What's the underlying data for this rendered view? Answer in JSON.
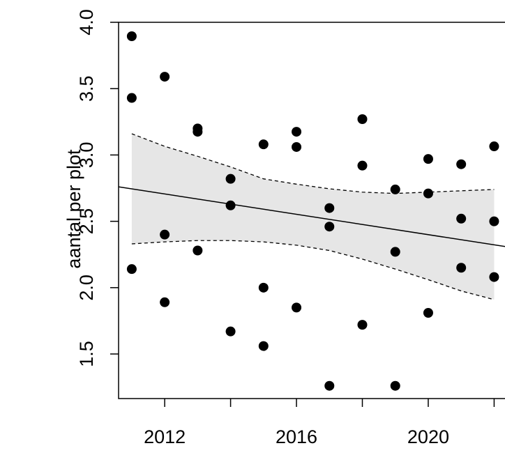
{
  "chart_data": {
    "type": "scatter",
    "y_label": "aantal per plot",
    "xlim": [
      2010.6,
      2022.33
    ],
    "ylim": [
      1.164,
      4.0
    ],
    "xticks": [
      2012,
      {
        "value": 2014,
        "label": null
      },
      2016,
      {
        "value": 2018,
        "label": null
      },
      2020,
      {
        "value": 2022,
        "label": null
      }
    ],
    "yticks": [
      {
        "value": 1.5,
        "label": "1.5"
      },
      {
        "value": 2.0,
        "label": "2.0"
      },
      {
        "value": 2.5,
        "label": "2.5"
      },
      {
        "value": 3.0,
        "label": "3.0"
      },
      {
        "value": 3.5,
        "label": "3.5"
      },
      {
        "value": 4.0,
        "label": "4.0"
      }
    ],
    "color": "#000000",
    "x": [
      2011,
      2011,
      2011,
      2012,
      2012,
      2012,
      2013,
      2013,
      2013,
      2014,
      2014,
      2014,
      2015,
      2015,
      2015,
      2016,
      2016,
      2016,
      2017,
      2017,
      2017,
      2018,
      2018,
      2018,
      2019,
      2019,
      2019,
      2020,
      2020,
      2020,
      2021,
      2021,
      2021,
      2022,
      2022,
      2022
    ],
    "y": [
      3.895,
      3.43,
      2.14,
      3.59,
      2.4,
      1.89,
      3.2,
      3.175,
      2.28,
      2.82,
      2.62,
      1.67,
      3.08,
      2.0,
      1.56,
      3.175,
      3.06,
      1.85,
      2.6,
      2.46,
      1.26,
      3.27,
      2.92,
      1.72,
      2.74,
      2.27,
      1.26,
      2.97,
      2.71,
      1.81,
      2.93,
      2.52,
      2.15,
      3.065,
      2.5,
      2.08
    ],
    "trend": {
      "x": [
        2010.6,
        2022.33
      ],
      "y": [
        2.76,
        2.31
      ]
    },
    "band": {
      "x": [
        2011,
        2012,
        2013,
        2014,
        2015,
        2016,
        2017,
        2018,
        2019,
        2020,
        2021,
        2022
      ],
      "upper": [
        3.16,
        3.065,
        2.99,
        2.91,
        2.82,
        2.78,
        2.745,
        2.72,
        2.71,
        2.72,
        2.73,
        2.74
      ],
      "lower": [
        2.33,
        2.345,
        2.355,
        2.355,
        2.345,
        2.32,
        2.28,
        2.215,
        2.14,
        2.06,
        1.975,
        1.91
      ],
      "color": "#e6e6e6"
    }
  }
}
